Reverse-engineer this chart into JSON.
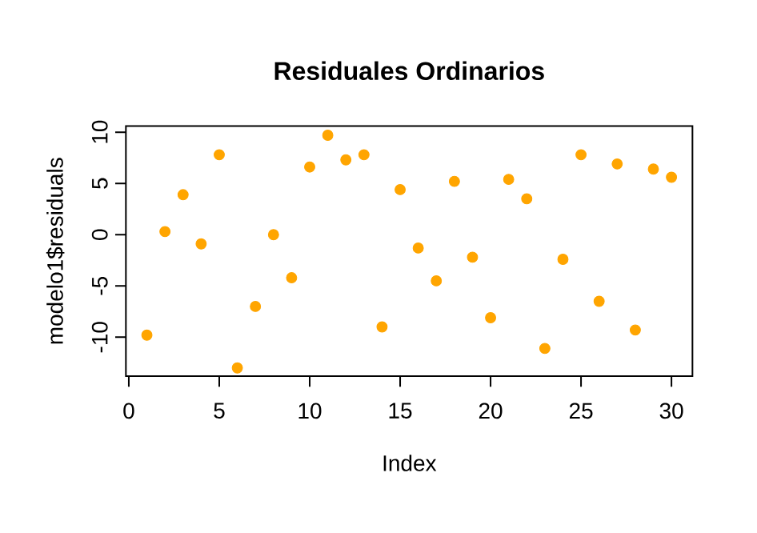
{
  "chart_data": {
    "type": "scatter",
    "title": "Residuales Ordinarios",
    "xlabel": "Index",
    "ylabel": "modelo1$residuals",
    "x": [
      1,
      2,
      3,
      4,
      5,
      6,
      7,
      8,
      9,
      10,
      11,
      12,
      13,
      14,
      15,
      16,
      17,
      18,
      19,
      20,
      21,
      22,
      23,
      24,
      25,
      26,
      27,
      28,
      29,
      30
    ],
    "values": [
      -9.8,
      0.3,
      3.9,
      -0.9,
      7.8,
      -13.0,
      -7.0,
      0.0,
      -4.2,
      6.6,
      9.7,
      7.3,
      7.8,
      -9.0,
      4.4,
      -1.3,
      -4.5,
      5.2,
      -2.2,
      -8.1,
      5.4,
      3.5,
      -11.1,
      -2.4,
      7.8,
      -6.5,
      6.9,
      -9.3,
      6.4,
      5.6
    ],
    "color": "#ffa500",
    "marker": "circle",
    "grid": false,
    "xlim": [
      -0.16,
      31.16
    ],
    "ylim": [
      -13.8,
      10.6
    ],
    "xticks": [
      0,
      5,
      10,
      15,
      20,
      25,
      30
    ],
    "yticks": [
      -10,
      -5,
      0,
      5,
      10
    ]
  }
}
